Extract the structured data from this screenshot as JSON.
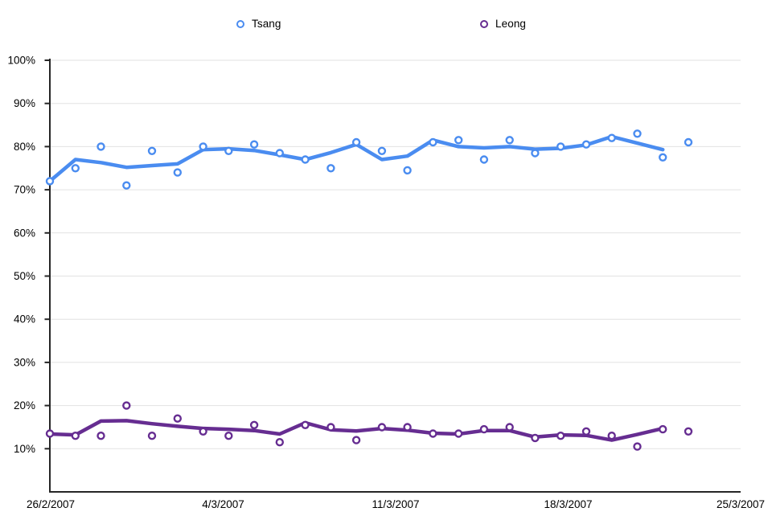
{
  "legend": {
    "items": [
      {
        "label": "Tsang",
        "color": "#4a8cf0"
      },
      {
        "label": "Leong",
        "color": "#662d91"
      }
    ]
  },
  "chart_data": {
    "type": "line",
    "title": "",
    "xlabel": "",
    "ylabel": "",
    "ylim": [
      0,
      100
    ],
    "grid": "horizontal",
    "legend_position": "top",
    "x_tick_labels": [
      "26/2/2007",
      "4/3/2007",
      "11/3/2007",
      "18/3/2007",
      "25/3/2007"
    ],
    "y_tick_labels": [
      "100%",
      "90%",
      "80%",
      "70%",
      "60%",
      "50%",
      "40%",
      "30%",
      "20%",
      "10%"
    ],
    "y_gridline_values": [
      100,
      90,
      80,
      70,
      60,
      50,
      40,
      30,
      20,
      10
    ],
    "n_points": 26,
    "series": [
      {
        "name": "Tsang",
        "color": "#4a8cf0",
        "markers": [
          72,
          75,
          80,
          71,
          79,
          74,
          80,
          79,
          80.5,
          78.5,
          77,
          75,
          81,
          79,
          74.5,
          81,
          81.5,
          77,
          81.5,
          78.5,
          80,
          80.5,
          82,
          83,
          77.5,
          81
        ],
        "trend": [
          72,
          77,
          76.3,
          75.2,
          75.6,
          76,
          79.3,
          79.5,
          79.1,
          78.1,
          77,
          78.6,
          80.5,
          77,
          77.8,
          81.5,
          80,
          79.7,
          80,
          79.4,
          79.6,
          80.4,
          82.3,
          80.8,
          79.3
        ]
      },
      {
        "name": "Leong",
        "color": "#662d91",
        "markers": [
          13.5,
          13,
          13,
          20,
          13,
          17,
          14,
          13,
          15.5,
          11.5,
          15.5,
          15,
          12,
          15,
          15,
          13.5,
          13.5,
          14.5,
          15,
          12.5,
          13,
          14,
          13,
          10.5,
          14.5,
          14
        ],
        "trend": [
          13.4,
          13.2,
          16.4,
          16.5,
          15.8,
          15.2,
          14.7,
          14.5,
          14.2,
          13.4,
          16,
          14.4,
          14.1,
          14.7,
          14.3,
          13.6,
          13.4,
          14.2,
          14.2,
          12.7,
          13.2,
          13.1,
          12,
          13.3,
          14.7
        ]
      }
    ],
    "style": {
      "grid_color": "#e2e2e2",
      "axis_color": "#262626",
      "marker_fill": "#ffffff"
    }
  }
}
